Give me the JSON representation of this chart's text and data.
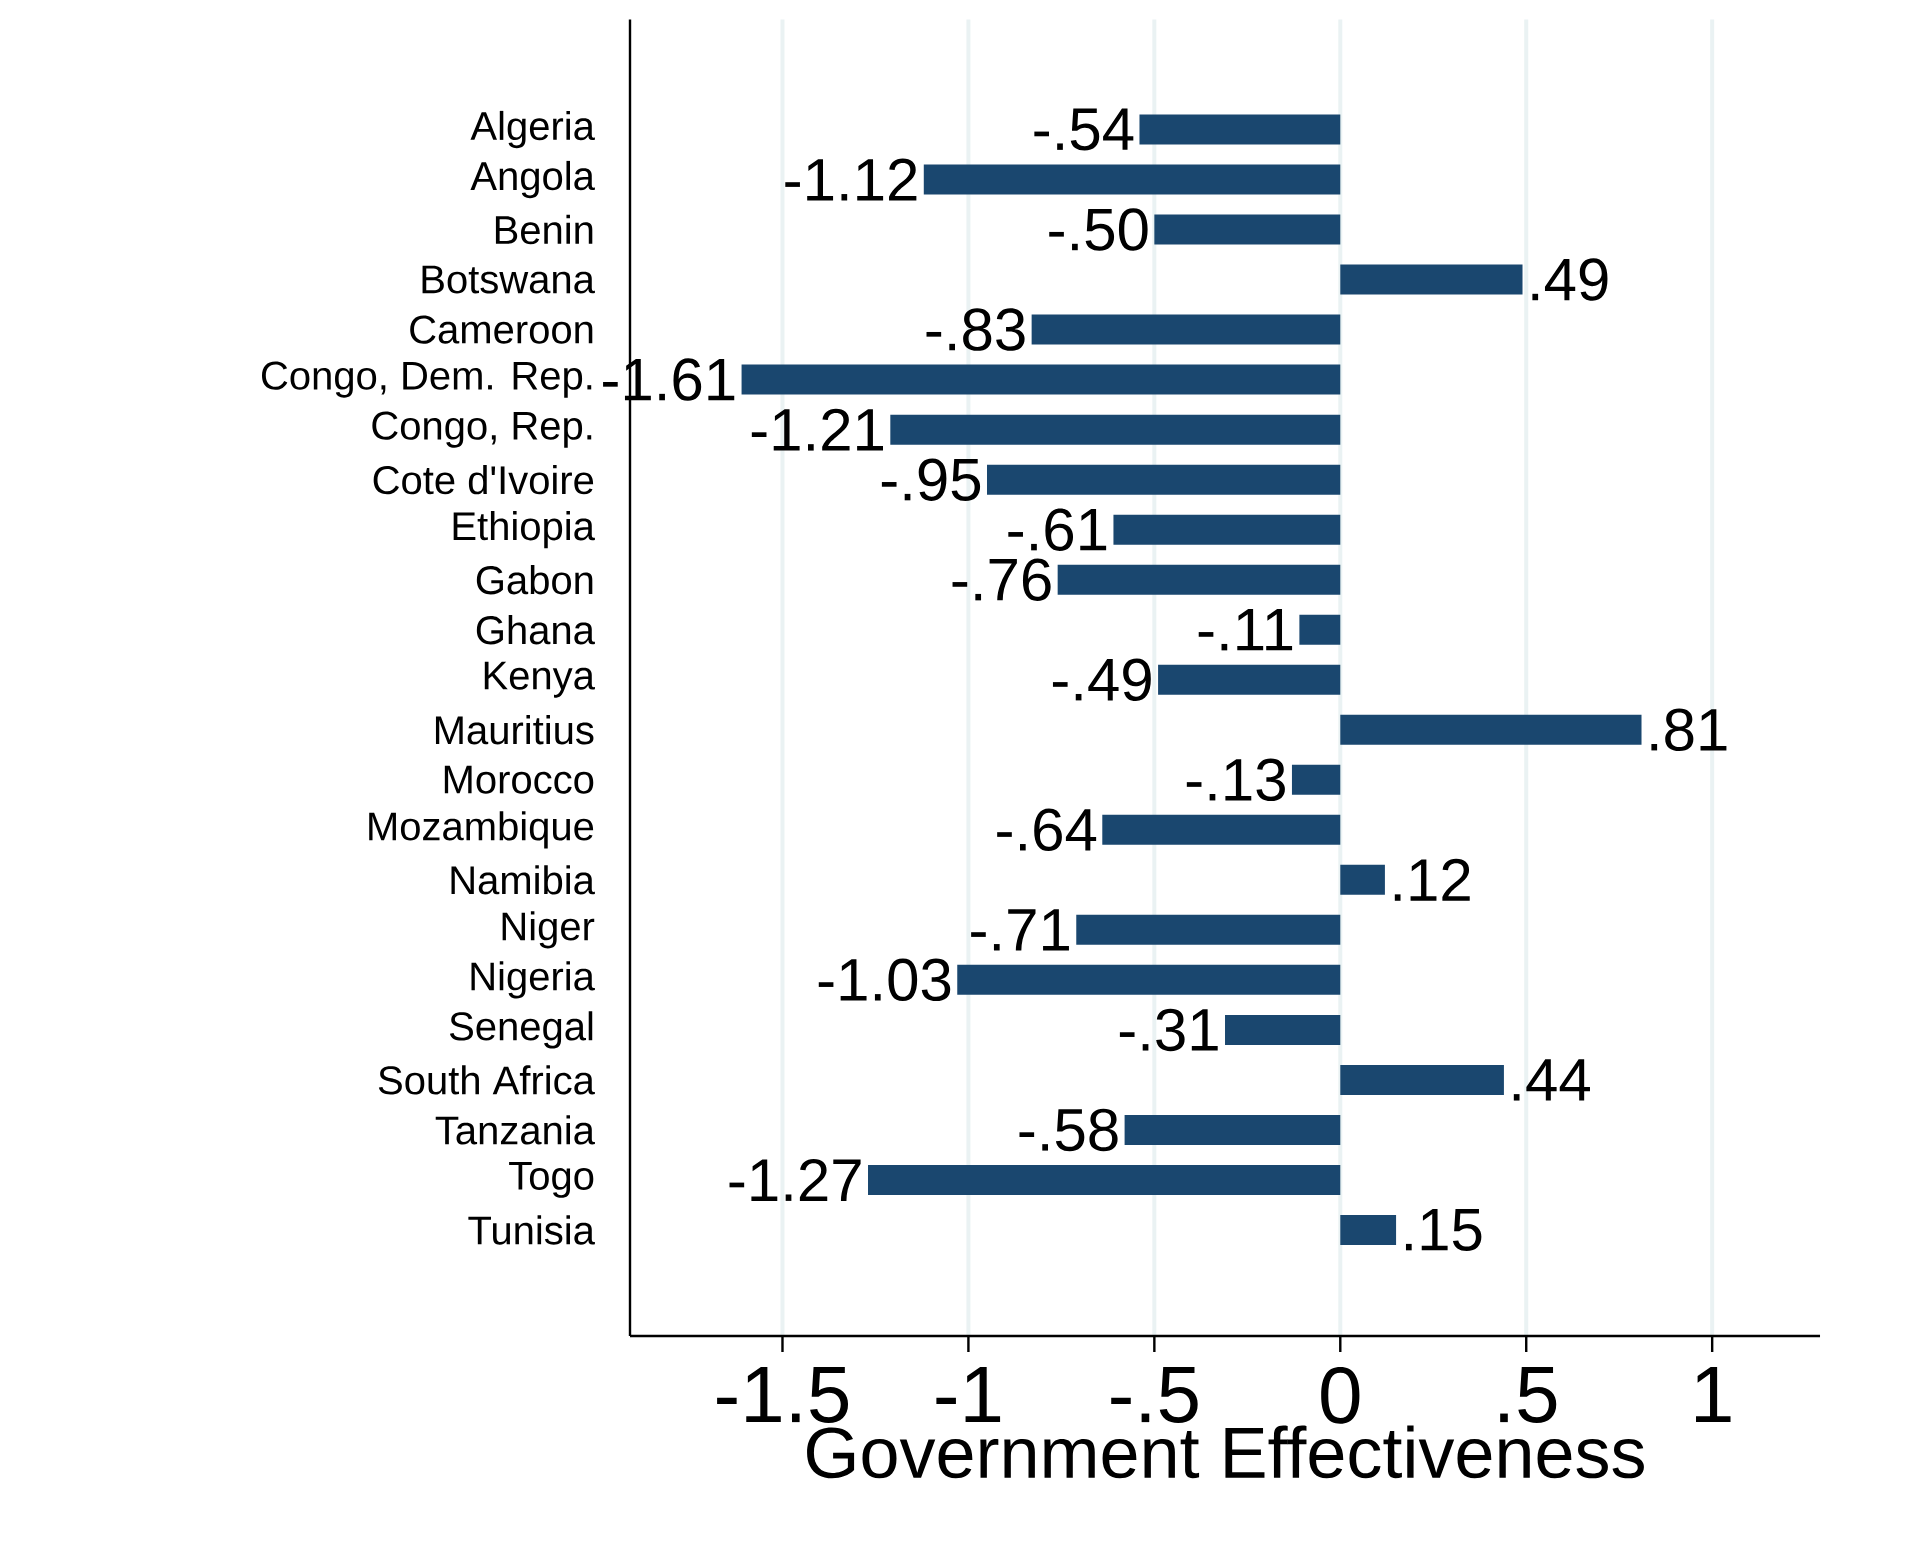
{
  "chart_data": {
    "type": "bar",
    "orientation": "horizontal",
    "xlabel": "Government Effectiveness",
    "categories": [
      "Algeria",
      "Angola",
      "Benin",
      "Botswana",
      "Cameroon",
      "Congo, Dem. Rep.",
      "Congo, Rep.",
      "Cote d'Ivoire",
      "Ethiopia",
      "Gabon",
      "Ghana",
      "Kenya",
      "Mauritius",
      "Morocco",
      "Mozambique",
      "Namibia",
      "Niger",
      "Nigeria",
      "Senegal",
      "South Africa",
      "Tanzania",
      "Togo",
      "Tunisia"
    ],
    "values": [
      -0.54,
      -1.12,
      -0.5,
      0.49,
      -0.83,
      -1.61,
      -1.21,
      -0.95,
      -0.61,
      -0.76,
      -0.11,
      -0.49,
      0.81,
      -0.13,
      -0.64,
      0.12,
      -0.71,
      -1.03,
      -0.31,
      0.44,
      -0.58,
      -1.27,
      0.15
    ],
    "value_labels": [
      "-.54",
      "-1.12",
      "-.50",
      ".49",
      "-.83",
      "-1.61",
      "-1.21",
      "-.95",
      "-.61",
      "-.76",
      "-.11",
      "-.49",
      ".81",
      "-.13",
      "-.64",
      ".12",
      "-.71",
      "-1.03",
      "-.31",
      ".44",
      "-.58",
      "-1.27",
      ".15"
    ],
    "color": "#1a476f",
    "xlim": [
      -1.91,
      1.29
    ],
    "xticks": [
      {
        "value": -1.5,
        "label": "-1.5"
      },
      {
        "value": -1,
        "label": "-1"
      },
      {
        "value": -0.5,
        "label": "-.5"
      },
      0,
      {
        "value": 0.5,
        "label": ".5"
      },
      1
    ],
    "grid": "x"
  }
}
